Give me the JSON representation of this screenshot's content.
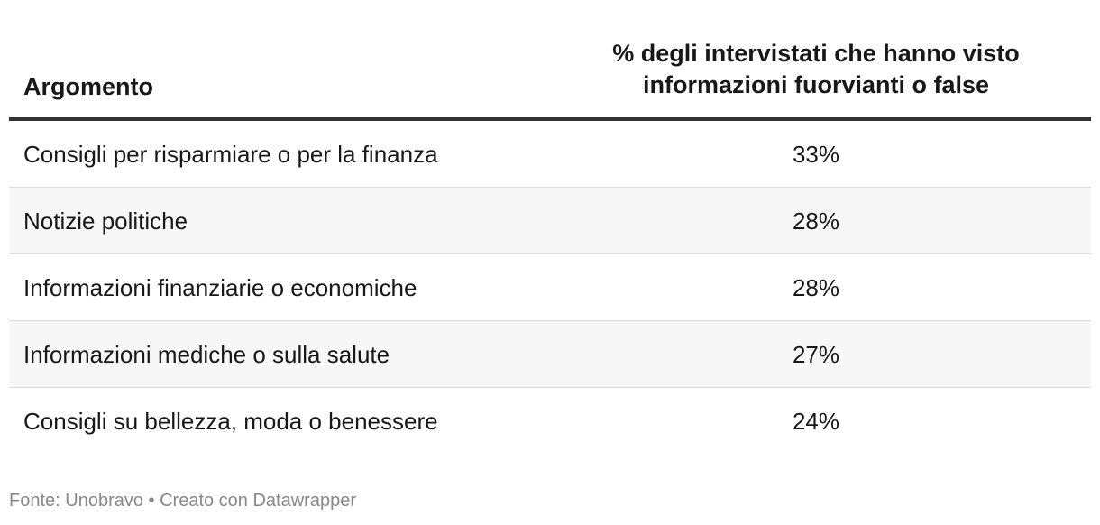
{
  "chart_data": {
    "type": "table",
    "columns": [
      "Argomento",
      "% degli intervistati che hanno visto informazioni fuorvianti o false"
    ],
    "header": {
      "topic": "Argomento",
      "value_line1": "% degli intervistati che hanno visto",
      "value_line2": "informazioni fuorvianti o false"
    },
    "rows": [
      {
        "topic": "Consigli per risparmiare o per la finanza",
        "value": 33,
        "label": "33%"
      },
      {
        "topic": "Notizie politiche",
        "value": 28,
        "label": "28%"
      },
      {
        "topic": "Informazioni finanziarie o economiche",
        "value": 28,
        "label": "28%"
      },
      {
        "topic": "Informazioni mediche o sulla salute",
        "value": 27,
        "label": "27%"
      },
      {
        "topic": "Consigli su bellezza, moda o benessere",
        "value": 24,
        "label": "24%"
      }
    ]
  },
  "footer": {
    "source": "Fonte: Unobravo • Creato con Datawrapper"
  },
  "colors": {
    "text": "#181818",
    "header_rule": "#333333",
    "row_divider": "#dddddd",
    "alt_row_bg": "#f7f7f7",
    "footer_text": "#888888"
  }
}
